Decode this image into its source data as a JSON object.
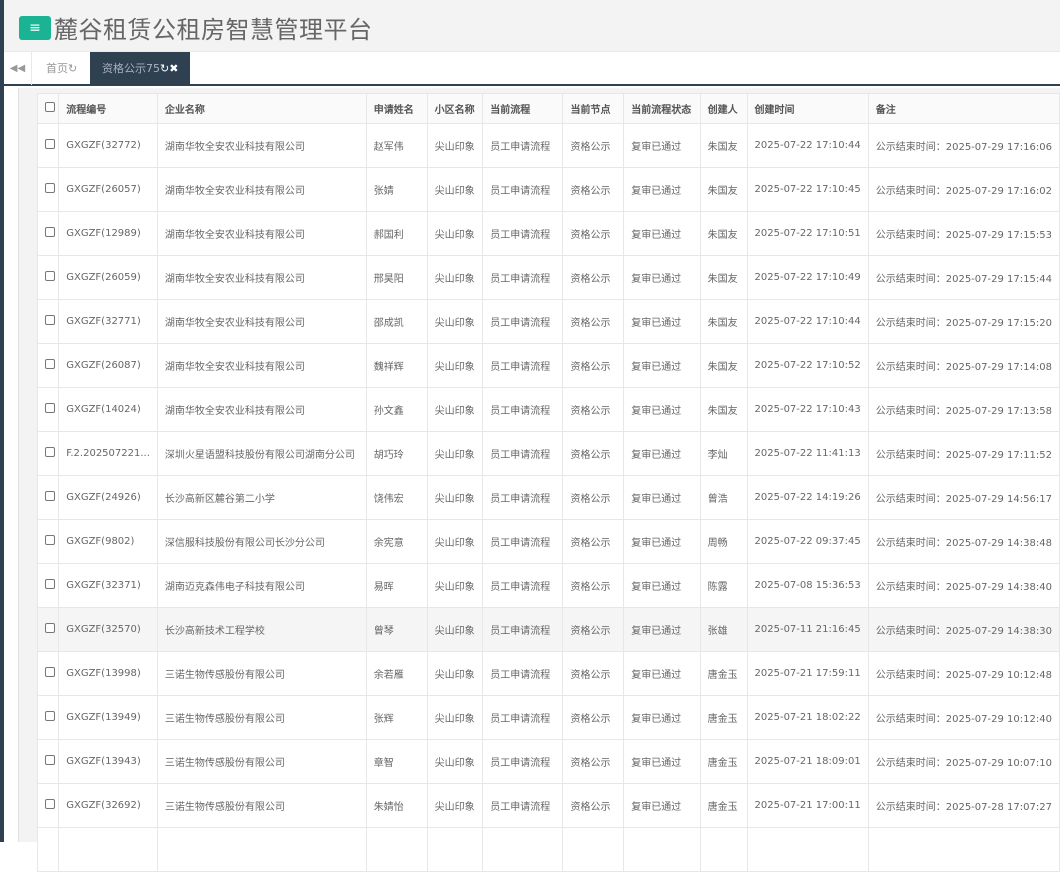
{
  "header": {
    "title": "麓谷租赁公租房智慧管理平台",
    "menu_icon": "≡"
  },
  "tabs": [
    {
      "label": "首页",
      "icon": "refresh-icon"
    },
    {
      "label": "资格公示75",
      "icon": "refresh-close-icon",
      "active": true
    }
  ],
  "colors": {
    "accent": "#1ab394",
    "nav": "#2f4050"
  },
  "table": {
    "columns": [
      "流程编号",
      "企业名称",
      "申请姓名",
      "小区名称",
      "当前流程",
      "当前节点",
      "当前流程状态",
      "创建人",
      "创建时间",
      "备注"
    ],
    "rows": [
      [
        "GXGZF(32772)",
        "湖南华牧全安农业科技有限公司",
        "赵军伟",
        "尖山印象",
        "员工申请流程",
        "资格公示",
        "复审已通过",
        "朱国友",
        "2025-07-22 17:10:44",
        "公示结束时间：2025-07-29 17:16:06"
      ],
      [
        "GXGZF(26057)",
        "湖南华牧全安农业科技有限公司",
        "张婧",
        "尖山印象",
        "员工申请流程",
        "资格公示",
        "复审已通过",
        "朱国友",
        "2025-07-22 17:10:45",
        "公示结束时间：2025-07-29 17:16:02"
      ],
      [
        "GXGZF(12989)",
        "湖南华牧全安农业科技有限公司",
        "郝国利",
        "尖山印象",
        "员工申请流程",
        "资格公示",
        "复审已通过",
        "朱国友",
        "2025-07-22 17:10:51",
        "公示结束时间：2025-07-29 17:15:53"
      ],
      [
        "GXGZF(26059)",
        "湖南华牧全安农业科技有限公司",
        "邢昊阳",
        "尖山印象",
        "员工申请流程",
        "资格公示",
        "复审已通过",
        "朱国友",
        "2025-07-22 17:10:49",
        "公示结束时间：2025-07-29 17:15:44"
      ],
      [
        "GXGZF(32771)",
        "湖南华牧全安农业科技有限公司",
        "邵成凯",
        "尖山印象",
        "员工申请流程",
        "资格公示",
        "复审已通过",
        "朱国友",
        "2025-07-22 17:10:44",
        "公示结束时间：2025-07-29 17:15:20"
      ],
      [
        "GXGZF(26087)",
        "湖南华牧全安农业科技有限公司",
        "魏祥辉",
        "尖山印象",
        "员工申请流程",
        "资格公示",
        "复审已通过",
        "朱国友",
        "2025-07-22 17:10:52",
        "公示结束时间：2025-07-29 17:14:08"
      ],
      [
        "GXGZF(14024)",
        "湖南华牧全安农业科技有限公司",
        "孙文鑫",
        "尖山印象",
        "员工申请流程",
        "资格公示",
        "复审已通过",
        "朱国友",
        "2025-07-22 17:10:43",
        "公示结束时间：2025-07-29 17:13:58"
      ],
      [
        "F.2.202507221...",
        "深圳火星语盟科技股份有限公司湖南分公司",
        "胡巧玲",
        "尖山印象",
        "员工申请流程",
        "资格公示",
        "复审已通过",
        "李灿",
        "2025-07-22 11:41:13",
        "公示结束时间：2025-07-29 17:11:52"
      ],
      [
        "GXGZF(24926)",
        "长沙高新区麓谷第二小学",
        "饶伟宏",
        "尖山印象",
        "员工申请流程",
        "资格公示",
        "复审已通过",
        "曾浩",
        "2025-07-22 14:19:26",
        "公示结束时间：2025-07-29 14:56:17"
      ],
      [
        "GXGZF(9802)",
        "深信服科技股份有限公司长沙分公司",
        "余宪意",
        "尖山印象",
        "员工申请流程",
        "资格公示",
        "复审已通过",
        "周畅",
        "2025-07-22 09:37:45",
        "公示结束时间：2025-07-29 14:38:48"
      ],
      [
        "GXGZF(32371)",
        "湖南迈克森伟电子科技有限公司",
        "易晖",
        "尖山印象",
        "员工申请流程",
        "资格公示",
        "复审已通过",
        "陈露",
        "2025-07-08 15:36:53",
        "公示结束时间：2025-07-29 14:38:40"
      ],
      [
        "GXGZF(32570)",
        "长沙高新技术工程学校",
        "曾琴",
        "尖山印象",
        "员工申请流程",
        "资格公示",
        "复审已通过",
        "张雄",
        "2025-07-11 21:16:45",
        "公示结束时间：2025-07-29 14:38:30"
      ],
      [
        "GXGZF(13998)",
        "三诺生物传感股份有限公司",
        "余若雁",
        "尖山印象",
        "员工申请流程",
        "资格公示",
        "复审已通过",
        "唐金玉",
        "2025-07-21 17:59:11",
        "公示结束时间：2025-07-29 10:12:48"
      ],
      [
        "GXGZF(13949)",
        "三诺生物传感股份有限公司",
        "张辉",
        "尖山印象",
        "员工申请流程",
        "资格公示",
        "复审已通过",
        "唐金玉",
        "2025-07-21 18:02:22",
        "公示结束时间：2025-07-29 10:12:40"
      ],
      [
        "GXGZF(13943)",
        "三诺生物传感股份有限公司",
        "章智",
        "尖山印象",
        "员工申请流程",
        "资格公示",
        "复审已通过",
        "唐金玉",
        "2025-07-21 18:09:01",
        "公示结束时间：2025-07-29 10:07:10"
      ],
      [
        "GXGZF(32692)",
        "三诺生物传感股份有限公司",
        "朱婧怡",
        "尖山印象",
        "员工申请流程",
        "资格公示",
        "复审已通过",
        "唐金玉",
        "2025-07-21 17:00:11",
        "公示结束时间：2025-07-28 17:07:27"
      ]
    ]
  }
}
